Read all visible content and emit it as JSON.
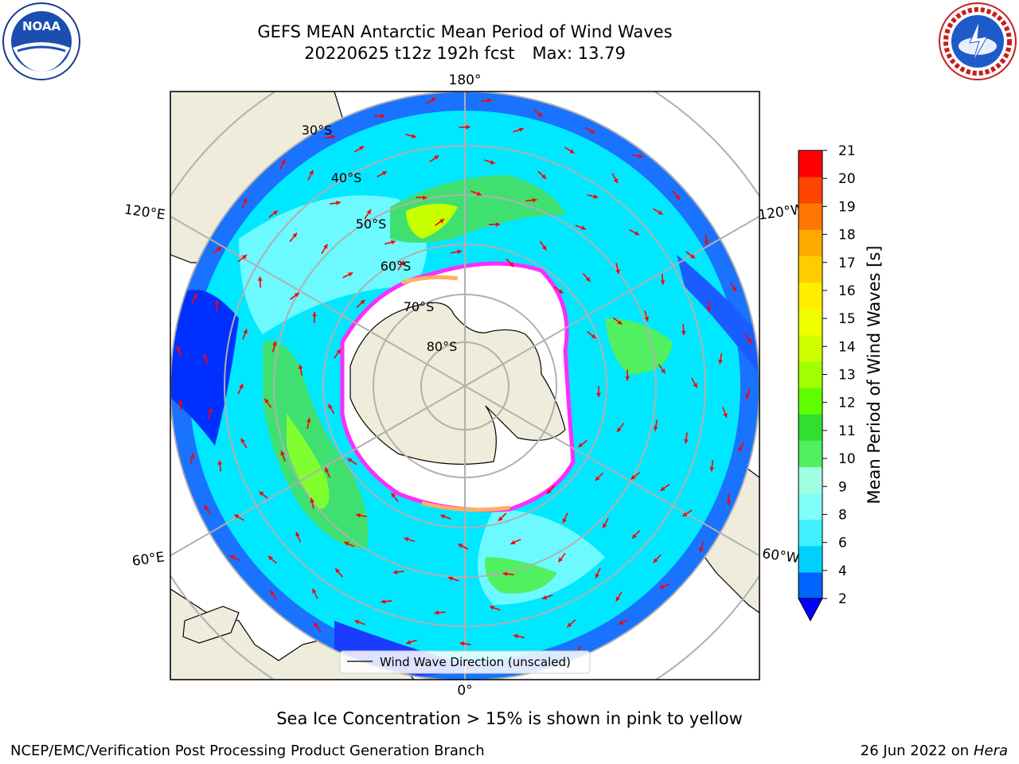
{
  "title": {
    "line1": "GEFS MEAN Antarctic Mean Period of Wind Waves",
    "run": "20220625 t12z 192h fcst",
    "max_label": "Max: 13.79"
  },
  "logos": {
    "left": "noaa-logo",
    "right": "national-weather-service-logo"
  },
  "map": {
    "projection": "south-polar-stereographic",
    "longitude_labels": [
      "180°",
      "120°E",
      "120°W",
      "60°E",
      "60°W",
      "0°"
    ],
    "latitude_labels": [
      "30°S",
      "40°S",
      "50°S",
      "60°S",
      "70°S",
      "80°S"
    ],
    "legend": "Wind Wave Direction (unscaled)",
    "colors": {
      "land": "#efecdc",
      "ice_edge": "#ff2cff",
      "ice_interior": "#ffb060",
      "arrows": "#ff0000",
      "grid": "#b0b0b0"
    }
  },
  "colorbar": {
    "label": "Mean Period of Wind Waves [s]",
    "ticks": [
      "21",
      "20",
      "19",
      "18",
      "17",
      "16",
      "15",
      "14",
      "13",
      "12",
      "11",
      "10",
      "9",
      "8",
      "6",
      "4",
      "2"
    ],
    "levels_bottom_to_top": [
      2,
      4,
      6,
      8,
      9,
      10,
      11,
      12,
      13,
      14,
      15,
      16,
      17,
      18,
      19,
      20,
      21
    ],
    "colors_bottom_to_top": [
      "#0064ff",
      "#00d0ff",
      "#40f0ff",
      "#80fff8",
      "#a0ffe0",
      "#50f060",
      "#30e030",
      "#60ff00",
      "#a0ff00",
      "#d0ff00",
      "#f0ff00",
      "#ffee00",
      "#ffcc00",
      "#ffaa00",
      "#ff7700",
      "#ff4400",
      "#ff0000"
    ],
    "under_color": "#0000ff"
  },
  "caption": "Sea Ice Concentration > 15% is shown in pink to yellow",
  "footer": {
    "credit": "NCEP/EMC/Verification Post Processing Product Generation Branch",
    "date": "26 Jun 2022 on",
    "machine": "Hera"
  }
}
